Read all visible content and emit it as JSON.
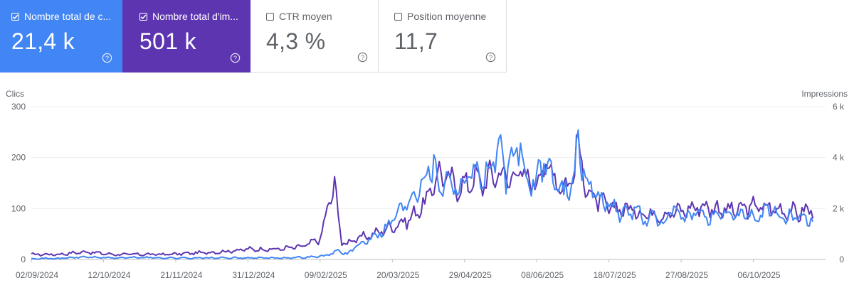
{
  "cards": [
    {
      "label": "Nombre total de c...",
      "value": "21,4 k",
      "checked": true,
      "color": "#4285f4"
    },
    {
      "label": "Nombre total d'im...",
      "value": "501 k",
      "checked": true,
      "color": "#5e35b1"
    },
    {
      "label": "CTR moyen",
      "value": "4,3 %",
      "checked": false
    },
    {
      "label": "Position moyenne",
      "value": "11,7",
      "checked": false
    }
  ],
  "chart_data": {
    "type": "line",
    "left_axis": {
      "label": "Clics",
      "ticks": [
        "0",
        "100",
        "200",
        "300"
      ],
      "ylim": [
        0,
        300
      ]
    },
    "right_axis": {
      "label": "Impressions",
      "ticks": [
        "0",
        "2 k",
        "4 k",
        "6 k"
      ],
      "ylim": [
        0,
        6000
      ]
    },
    "x_ticks": [
      "02/09/2024",
      "12/10/2024",
      "21/11/2024",
      "31/12/2024",
      "09/02/2025",
      "20/03/2025",
      "29/04/2025",
      "08/06/2025",
      "18/07/2025",
      "27/08/2025",
      "06/10/2025"
    ],
    "grid": true,
    "series": [
      {
        "metric": "clicks",
        "axis": "left",
        "color": "#4285f4",
        "points": [
          [
            0,
            2
          ],
          [
            15,
            2
          ],
          [
            30,
            5
          ],
          [
            45,
            3
          ],
          [
            60,
            4
          ],
          [
            75,
            3
          ],
          [
            90,
            3
          ],
          [
            105,
            3
          ],
          [
            120,
            3
          ],
          [
            135,
            3
          ],
          [
            150,
            4
          ],
          [
            160,
            6
          ],
          [
            165,
            9
          ],
          [
            170,
            18
          ],
          [
            175,
            10
          ],
          [
            180,
            25
          ],
          [
            185,
            35
          ],
          [
            190,
            50
          ],
          [
            195,
            55
          ],
          [
            200,
            80
          ],
          [
            205,
            100
          ],
          [
            210,
            120
          ],
          [
            215,
            150
          ],
          [
            220,
            175
          ],
          [
            223,
            190
          ],
          [
            226,
            140
          ],
          [
            230,
            165
          ],
          [
            235,
            145
          ],
          [
            240,
            150
          ],
          [
            245,
            185
          ],
          [
            250,
            155
          ],
          [
            255,
            185
          ],
          [
            259,
            215
          ],
          [
            263,
            165
          ],
          [
            267,
            195
          ],
          [
            271,
            230
          ],
          [
            275,
            135
          ],
          [
            280,
            160
          ],
          [
            285,
            200
          ],
          [
            290,
            150
          ],
          [
            295,
            130
          ],
          [
            300,
            160
          ],
          [
            303,
            225
          ],
          [
            306,
            170
          ],
          [
            310,
            140
          ],
          [
            315,
            120
          ],
          [
            320,
            110
          ],
          [
            325,
            95
          ],
          [
            330,
            90
          ],
          [
            335,
            100
          ],
          [
            340,
            75
          ],
          [
            345,
            85
          ],
          [
            350,
            70
          ],
          [
            355,
            95
          ],
          [
            360,
            85
          ],
          [
            365,
            80
          ],
          [
            370,
            95
          ],
          [
            375,
            85
          ],
          [
            380,
            80
          ],
          [
            385,
            90
          ],
          [
            390,
            85
          ],
          [
            395,
            95
          ],
          [
            400,
            80
          ],
          [
            405,
            90
          ],
          [
            410,
            100
          ],
          [
            415,
            80
          ],
          [
            420,
            85
          ],
          [
            425,
            80
          ],
          [
            430,
            75
          ],
          [
            433,
            80
          ]
        ]
      },
      {
        "metric": "impressions",
        "axis": "right",
        "color": "#5e35b1",
        "points": [
          [
            0,
            200
          ],
          [
            15,
            200
          ],
          [
            30,
            300
          ],
          [
            45,
            200
          ],
          [
            60,
            200
          ],
          [
            75,
            200
          ],
          [
            90,
            250
          ],
          [
            105,
            300
          ],
          [
            120,
            400
          ],
          [
            135,
            400
          ],
          [
            150,
            500
          ],
          [
            160,
            800
          ],
          [
            165,
            2200
          ],
          [
            168,
            3000
          ],
          [
            172,
            600
          ],
          [
            180,
            800
          ],
          [
            190,
            1000
          ],
          [
            200,
            1300
          ],
          [
            210,
            1600
          ],
          [
            220,
            2400
          ],
          [
            225,
            3400
          ],
          [
            230,
            3200
          ],
          [
            235,
            2900
          ],
          [
            240,
            2900
          ],
          [
            245,
            3200
          ],
          [
            250,
            3000
          ],
          [
            255,
            3300
          ],
          [
            260,
            3400
          ],
          [
            265,
            3100
          ],
          [
            270,
            3600
          ],
          [
            275,
            3000
          ],
          [
            280,
            3200
          ],
          [
            285,
            3700
          ],
          [
            290,
            3300
          ],
          [
            295,
            2800
          ],
          [
            300,
            3300
          ],
          [
            303,
            4500
          ],
          [
            306,
            3200
          ],
          [
            310,
            2500
          ],
          [
            320,
            2000
          ],
          [
            330,
            2000
          ],
          [
            340,
            1800
          ],
          [
            350,
            1800
          ],
          [
            360,
            1900
          ],
          [
            370,
            2100
          ],
          [
            380,
            2000
          ],
          [
            390,
            1900
          ],
          [
            400,
            2100
          ],
          [
            410,
            2000
          ],
          [
            420,
            1900
          ],
          [
            425,
            1800
          ],
          [
            433,
            2000
          ]
        ]
      }
    ]
  }
}
